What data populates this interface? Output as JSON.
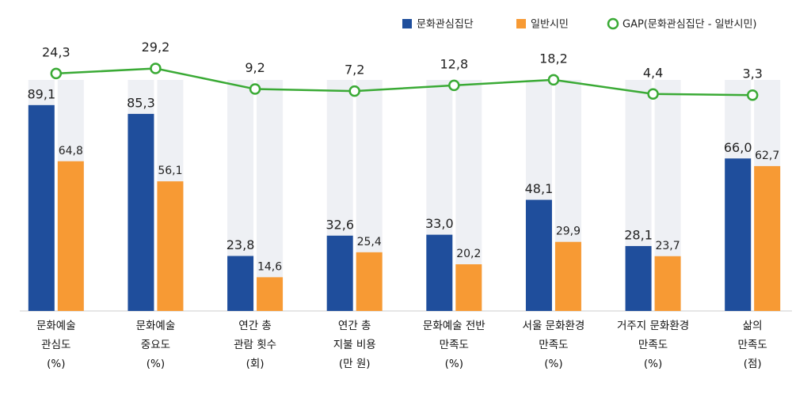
{
  "chart_data": {
    "type": "bar",
    "categories": [
      "문화예술\n관심도\n(%)",
      "문화예술\n중요도\n(%)",
      "연간 총\n관람 횟수\n(회)",
      "연간 총\n지불 비용\n(만 원)",
      "문화예술 전반\n만족도\n(%)",
      "서울 문화환경\n만족도\n(%)",
      "거주지 문화환경\n만족도\n(%)",
      "삶의\n만족도\n(점)"
    ],
    "ylim": [
      0,
      100
    ],
    "y2lim": [
      0,
      65
    ],
    "series": [
      {
        "name": "문화관심집단",
        "color": "#1f4e9c",
        "values": [
          89.1,
          85.3,
          23.8,
          32.6,
          33.0,
          48.1,
          28.1,
          66.0
        ],
        "value_labels": [
          "89,1",
          "85,3",
          "23,8",
          "32,6",
          "33,0",
          "48,1",
          "28,1",
          "66,0"
        ]
      },
      {
        "name": "일반시민",
        "color": "#f79a34",
        "values": [
          64.8,
          56.1,
          14.6,
          25.4,
          20.2,
          29.9,
          23.7,
          62.7
        ],
        "value_labels": [
          "64,8",
          "56,1",
          "14,6",
          "25,4",
          "20,2",
          "29,9",
          "23,7",
          "62,7"
        ]
      },
      {
        "name": "GAP(문화관심집단 - 일반시민)",
        "color": "#3aaa35",
        "type": "line",
        "axis": "y2",
        "values": [
          24.3,
          29.2,
          9.2,
          7.2,
          12.8,
          18.2,
          4.4,
          3.3
        ],
        "value_labels": [
          "24,3",
          "29,2",
          "9,2",
          "7,2",
          "12,8",
          "18,2",
          "4,4",
          "3,3"
        ]
      }
    ]
  }
}
